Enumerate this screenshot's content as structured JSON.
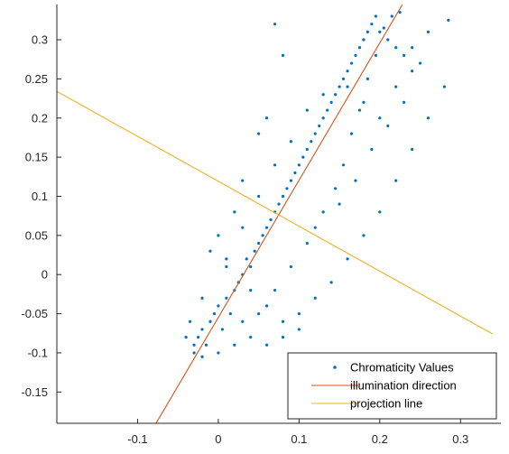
{
  "chart_data": {
    "type": "scatter",
    "title": "",
    "xlabel": "",
    "ylabel": "",
    "xlim": [
      -0.2,
      0.35
    ],
    "ylim": [
      -0.19,
      0.345
    ],
    "xticks": [
      -0.1,
      0,
      0.1,
      0.2,
      0.3
    ],
    "xtick_labels": [
      "-0.1",
      "0",
      "0.1",
      "0.2",
      "0.3"
    ],
    "yticks": [
      -0.15,
      -0.1,
      -0.05,
      0,
      0.05,
      0.1,
      0.15,
      0.2,
      0.25,
      0.3
    ],
    "ytick_labels": [
      "-0.15",
      "-0.1",
      "-0.05",
      "0",
      "0.05",
      "0.1",
      "0.15",
      "0.2",
      "0.25",
      "0.3"
    ],
    "grid": false,
    "legend_position": "bottom-right",
    "series": [
      {
        "name": "Chromaticity Values",
        "kind": "scatter",
        "color": "#0072BD",
        "points": [
          [
            -0.03,
            -0.1
          ],
          [
            -0.025,
            -0.08
          ],
          [
            -0.02,
            -0.07
          ],
          [
            -0.015,
            -0.09
          ],
          [
            -0.01,
            -0.06
          ],
          [
            -0.005,
            -0.05
          ],
          [
            0.0,
            -0.04
          ],
          [
            0.005,
            -0.07
          ],
          [
            0.01,
            -0.03
          ],
          [
            0.015,
            -0.05
          ],
          [
            0.02,
            -0.02
          ],
          [
            0.025,
            -0.01
          ],
          [
            0.03,
            0.0
          ],
          [
            0.035,
            0.02
          ],
          [
            0.04,
            0.01
          ],
          [
            0.045,
            0.03
          ],
          [
            0.05,
            0.04
          ],
          [
            0.055,
            0.05
          ],
          [
            0.06,
            0.06
          ],
          [
            0.065,
            0.07
          ],
          [
            0.07,
            0.08
          ],
          [
            0.075,
            0.09
          ],
          [
            0.08,
            0.1
          ],
          [
            0.085,
            0.11
          ],
          [
            0.09,
            0.12
          ],
          [
            0.095,
            0.13
          ],
          [
            0.1,
            0.14
          ],
          [
            0.105,
            0.15
          ],
          [
            0.11,
            0.16
          ],
          [
            0.115,
            0.17
          ],
          [
            0.12,
            0.18
          ],
          [
            0.125,
            0.19
          ],
          [
            0.13,
            0.2
          ],
          [
            0.135,
            0.21
          ],
          [
            0.14,
            0.22
          ],
          [
            0.145,
            0.23
          ],
          [
            0.15,
            0.24
          ],
          [
            0.155,
            0.25
          ],
          [
            0.16,
            0.26
          ],
          [
            0.165,
            0.27
          ],
          [
            0.17,
            0.28
          ],
          [
            0.175,
            0.29
          ],
          [
            0.18,
            0.3
          ],
          [
            0.185,
            0.31
          ],
          [
            0.19,
            0.32
          ],
          [
            0.195,
            0.33
          ],
          [
            0.2,
            0.31
          ],
          [
            0.21,
            0.3
          ],
          [
            0.22,
            0.29
          ],
          [
            0.23,
            0.28
          ],
          [
            0.24,
            0.26
          ],
          [
            0.25,
            0.27
          ],
          [
            0.285,
            0.325
          ],
          [
            0.07,
            0.32
          ],
          [
            0.08,
            0.28
          ],
          [
            0.06,
            0.2
          ],
          [
            0.05,
            0.18
          ],
          [
            0.03,
            0.12
          ],
          [
            0.02,
            0.08
          ],
          [
            0.0,
            0.05
          ],
          [
            -0.01,
            0.03
          ],
          [
            0.01,
            0.01
          ],
          [
            0.04,
            -0.02
          ],
          [
            0.06,
            -0.04
          ],
          [
            0.08,
            -0.06
          ],
          [
            0.1,
            -0.05
          ],
          [
            0.12,
            -0.03
          ],
          [
            0.14,
            -0.01
          ],
          [
            0.16,
            0.02
          ],
          [
            0.18,
            0.05
          ],
          [
            0.2,
            0.08
          ],
          [
            0.22,
            0.12
          ],
          [
            0.24,
            0.16
          ],
          [
            0.26,
            0.2
          ],
          [
            0.28,
            0.24
          ],
          [
            0.12,
            0.06
          ],
          [
            0.15,
            0.09
          ],
          [
            0.17,
            0.12
          ],
          [
            0.19,
            0.16
          ],
          [
            0.21,
            0.19
          ],
          [
            0.23,
            0.22
          ],
          [
            0.13,
            0.23
          ],
          [
            0.16,
            0.24
          ],
          [
            0.18,
            0.22
          ],
          [
            0.2,
            0.2
          ],
          [
            0.22,
            0.24
          ],
          [
            0.24,
            0.29
          ],
          [
            0.26,
            0.31
          ],
          [
            0.11,
            0.21
          ],
          [
            0.09,
            0.17
          ],
          [
            0.07,
            0.14
          ],
          [
            0.05,
            0.1
          ],
          [
            0.03,
            0.06
          ],
          [
            0.01,
            0.02
          ],
          [
            -0.02,
            -0.03
          ],
          [
            -0.035,
            -0.06
          ],
          [
            -0.04,
            -0.08
          ],
          [
            -0.03,
            -0.09
          ],
          [
            -0.02,
            -0.105
          ],
          [
            0.0,
            -0.1
          ],
          [
            0.02,
            -0.09
          ],
          [
            0.04,
            -0.08
          ],
          [
            0.06,
            -0.09
          ],
          [
            0.08,
            -0.08
          ],
          [
            0.1,
            -0.07
          ],
          [
            0.03,
            -0.06
          ],
          [
            0.05,
            -0.05
          ],
          [
            0.07,
            -0.02
          ],
          [
            0.09,
            0.01
          ],
          [
            0.11,
            0.04
          ],
          [
            0.13,
            0.08
          ],
          [
            0.145,
            0.11
          ],
          [
            0.155,
            0.14
          ],
          [
            0.165,
            0.18
          ],
          [
            0.175,
            0.21
          ],
          [
            0.185,
            0.25
          ],
          [
            0.195,
            0.28
          ],
          [
            0.205,
            0.315
          ],
          [
            0.215,
            0.33
          ],
          [
            0.225,
            0.335
          ]
        ]
      },
      {
        "name": "illumination direction",
        "kind": "line",
        "color": "#D95319",
        "points": [
          [
            -0.08,
            -0.195
          ],
          [
            0.228,
            0.345
          ]
        ]
      },
      {
        "name": "projection line",
        "kind": "line",
        "color": "#EDB120",
        "points": [
          [
            -0.2,
            0.234
          ],
          [
            0.34,
            -0.076
          ]
        ]
      }
    ]
  }
}
